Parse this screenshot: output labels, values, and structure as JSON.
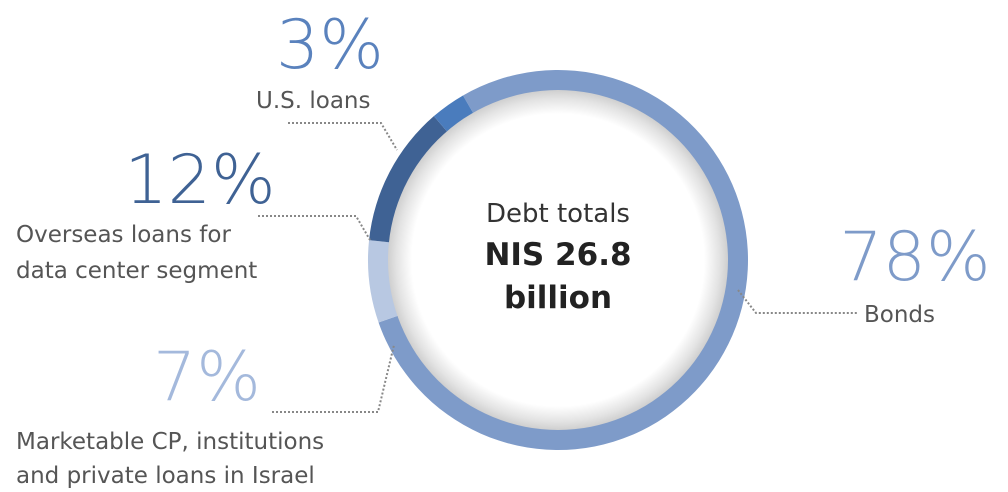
{
  "chart_data": {
    "type": "pie",
    "center_label": {
      "line1": "Debt totals",
      "line2": "NIS 26.8",
      "line3": "billion"
    },
    "slices": [
      {
        "percent_label": "78%",
        "label_lines": [
          "Bonds"
        ],
        "value": 78,
        "color": "#7e9bc9"
      },
      {
        "percent_label": "7%",
        "label_lines": [
          "Marketable CP, institutions",
          "and private loans in Israel"
        ],
        "value": 7,
        "color": "#b8c8e2"
      },
      {
        "percent_label": "12%",
        "label_lines": [
          "Overseas loans for",
          "data center segment"
        ],
        "value": 12,
        "color": "#3f6294"
      },
      {
        "percent_label": "3%",
        "label_lines": [
          "U.S. loans"
        ],
        "value": 3,
        "color": "#4a7cbd"
      }
    ]
  }
}
